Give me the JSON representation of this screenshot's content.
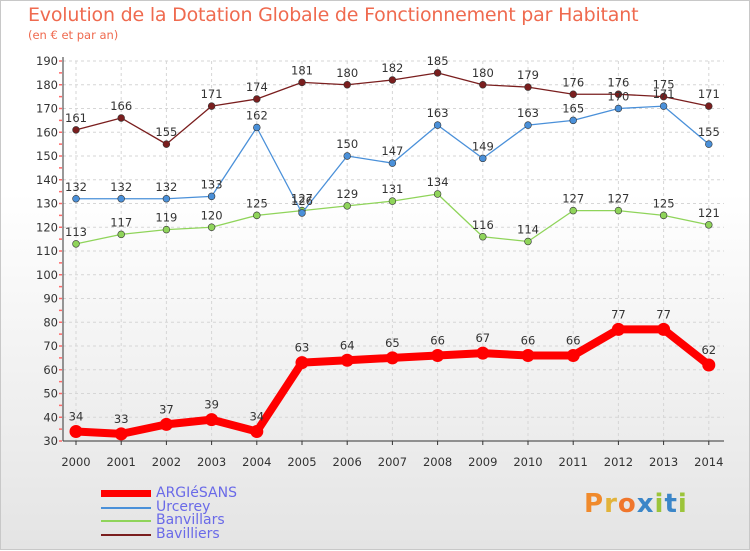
{
  "title": "Evolution de la Dotation Globale de Fonctionnement par Habitant",
  "subtitle": "(en € et par an)",
  "logo": {
    "text": "Proxiti",
    "letters": [
      "P",
      "r",
      "o",
      "x",
      "i",
      "t",
      "i"
    ],
    "colors": [
      "#f08a2c",
      "#e2b33a",
      "#f0762c",
      "#3b86c8",
      "#9cc43a",
      "#3b86c8",
      "#9cc43a"
    ]
  },
  "colors": {
    "title": "#ef6a4f",
    "axis_tick_marks": "#ff6a6a",
    "grid": "#d6d6d6",
    "legend_text": "#6a6ae8"
  },
  "chart_data": {
    "type": "line",
    "title": "Evolution de la Dotation Globale de Fonctionnement par Habitant",
    "subtitle": "(en € et par an)",
    "xlabel": "",
    "ylabel": "",
    "x": [
      "2000",
      "2001",
      "2002",
      "2003",
      "2004",
      "2005",
      "2006",
      "2007",
      "2008",
      "2009",
      "2010",
      "2011",
      "2012",
      "2013",
      "2014"
    ],
    "y_ticks": [
      "30",
      "40",
      "50",
      "60",
      "70",
      "80",
      "90",
      "100",
      "110",
      "120",
      "130",
      "140",
      "150",
      "160",
      "170",
      "180",
      "190"
    ],
    "ylim": [
      30,
      190
    ],
    "grid": true,
    "legend_position": "bottom-left",
    "series": [
      {
        "name": "ARGIéSANS",
        "color": "#ff0000",
        "values": [
          34,
          33,
          37,
          39,
          34,
          63,
          64,
          65,
          66,
          67,
          66,
          66,
          77,
          77,
          62
        ],
        "labels": [
          "34",
          "33",
          "37",
          "39",
          "34",
          "63",
          "64",
          "65",
          "66",
          "67",
          "66",
          "66",
          "77",
          "77",
          "62"
        ]
      },
      {
        "name": "Urcerey",
        "color": "#4a90d9",
        "values": [
          132,
          132,
          132,
          133,
          162,
          126,
          150,
          147,
          163,
          149,
          163,
          165,
          170,
          171,
          155
        ],
        "labels": [
          "132",
          "132",
          "132",
          "133",
          "162",
          "126",
          "150",
          "147",
          "163",
          "149",
          "163",
          "165",
          "170",
          "171",
          "155"
        ]
      },
      {
        "name": "Banvillars",
        "color": "#8fd45a",
        "values": [
          113,
          117,
          119,
          120,
          125,
          127,
          129,
          131,
          134,
          116,
          114,
          127,
          127,
          125,
          121
        ],
        "labels": [
          "113",
          "117",
          "119",
          "120",
          "125",
          "127",
          "129",
          "131",
          "134",
          "116",
          "114",
          "127",
          "127",
          "125",
          "121"
        ]
      },
      {
        "name": "Bavilliers",
        "color": "#7a1e1e",
        "values": [
          161,
          166,
          155,
          171,
          174,
          181,
          180,
          182,
          185,
          180,
          179,
          176,
          176,
          175,
          171
        ],
        "labels": [
          "161",
          "166",
          "155",
          "171",
          "174",
          "181",
          "180",
          "182",
          "185",
          "180",
          "179",
          "176",
          "176",
          "175",
          "171"
        ]
      }
    ]
  }
}
